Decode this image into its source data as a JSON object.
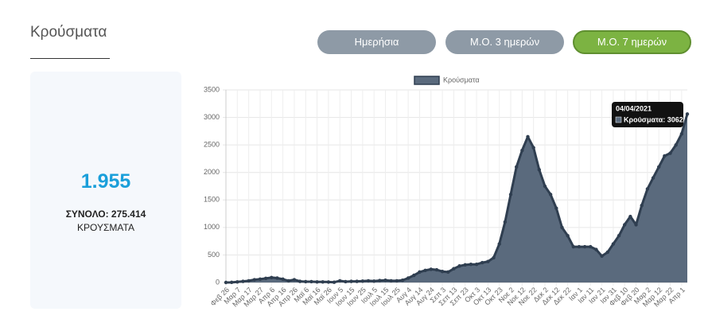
{
  "header": {
    "title": "Κρούσματα"
  },
  "card": {
    "value": "1.955",
    "total": "ΣΥΝΟΛΟ: 275.414",
    "unit": "ΚΡΟΥΣΜΑΤΑ"
  },
  "buttons": [
    "Ημερήσια",
    "Μ.Ο. 3 ημερών",
    "Μ.Ο. 7 ημερών"
  ],
  "active_button": 2,
  "chart_data": {
    "type": "area",
    "categories": [
      "Φεβ 26",
      null,
      "Μαρ 7",
      null,
      "Μαρ 17",
      null,
      "Μαρ 27",
      null,
      "Απρ 6",
      null,
      "Απρ 16",
      null,
      "Απρ 26",
      null,
      "Μαϊ 6",
      null,
      "Μαϊ 16",
      null,
      "Μαϊ 26",
      null,
      "Ιουν 5",
      null,
      "Ιουν 15",
      null,
      "Ιουν 25",
      null,
      "Ιουλ 5",
      null,
      "Ιουλ 15",
      null,
      "Ιουλ 25",
      null,
      "Αυγ 4",
      null,
      "Αυγ 14",
      null,
      "Αυγ 24",
      null,
      "Σεπ 3",
      null,
      "Σεπ 13",
      null,
      "Σεπ 23",
      null,
      "Οκτ 3",
      null,
      "Οκτ 13",
      null,
      "Οκτ 23",
      null,
      "Νοε 2",
      null,
      "Νοε 12",
      null,
      "Νοε 22",
      null,
      "Δεκ 2",
      null,
      "Δεκ 12",
      null,
      "Δεκ 22",
      null,
      "Ιαν 1",
      null,
      "Ιαν 11",
      null,
      "Ιαν 21",
      null,
      "Ιαν 31",
      null,
      "Φεβ 10",
      null,
      "Φεβ 20",
      null,
      "Μαρ 2",
      null,
      "Μαρ 12",
      null,
      "Μαρ 22",
      null,
      "Απρ 1",
      null
    ],
    "series": [
      {
        "name": "Κρούσματα",
        "color": "#5a6a7d",
        "line_color": "#2f3e50",
        "values": [
          0,
          2,
          10,
          20,
          30,
          50,
          60,
          75,
          90,
          80,
          60,
          30,
          50,
          20,
          15,
          15,
          10,
          10,
          8,
          5,
          30,
          15,
          20,
          20,
          25,
          30,
          25,
          35,
          40,
          30,
          30,
          40,
          80,
          130,
          190,
          220,
          240,
          230,
          200,
          190,
          250,
          300,
          320,
          330,
          330,
          360,
          380,
          450,
          700,
          1100,
          1600,
          2100,
          2400,
          2650,
          2450,
          2050,
          1750,
          1600,
          1350,
          1000,
          850,
          650,
          650,
          650,
          650,
          600,
          480,
          550,
          700,
          850,
          1050,
          1200,
          1050,
          1400,
          1700,
          1900,
          2100,
          2300,
          2350,
          2500,
          2700,
          3062
        ]
      }
    ],
    "ylim": [
      0,
      3500
    ],
    "yticks": [
      0,
      500,
      1000,
      1500,
      2000,
      2500,
      3000,
      3500
    ],
    "grid": true,
    "legend": "top",
    "tooltip": {
      "date": "04/04/2021",
      "label": "Κρούσματα: 3062"
    }
  }
}
